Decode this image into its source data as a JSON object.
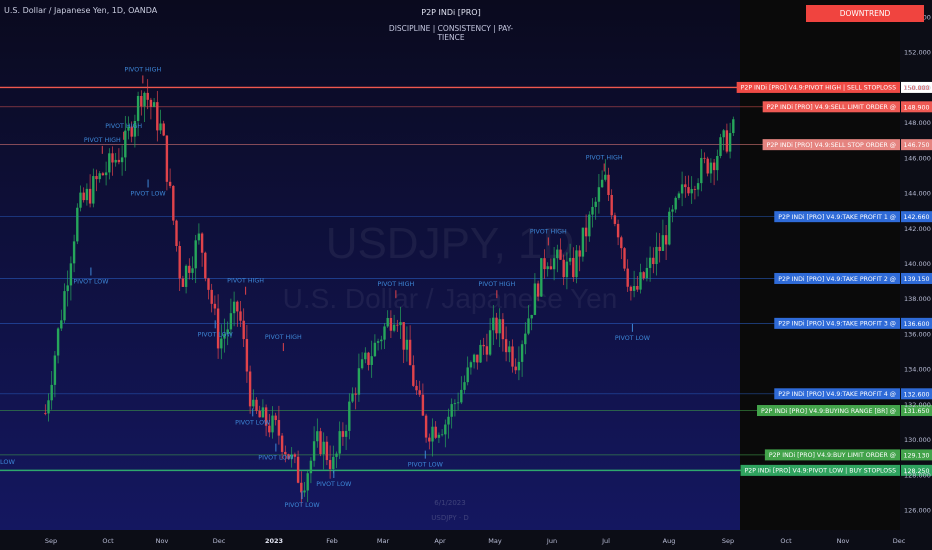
{
  "header": {
    "symbol_title": "U.S. Dollar / Japanese Yen, 1D, OANDA",
    "indicator_title": "P2P INDi [PRO]",
    "indicator_subtitle": "DISCIPLINE  |  CONSISTENCY  |  PAY-TIENCE",
    "trend_badge": "DOWNTREND"
  },
  "colors": {
    "background": "#0b0c2a",
    "up_candle": "#26a65b",
    "down_candle": "#e0434b",
    "sell_line": "#f05a50",
    "take_profit": "#2f6bd8",
    "buy_line": "#3f9e48",
    "buy_stop": "#2ea86e",
    "text": "#b9bdd6"
  },
  "watermark": {
    "symbol": "USDJPY, 1D",
    "name": "U.S. Dollar / Japanese Yen"
  },
  "cursor_readout": {
    "date": "6/1/2023",
    "symbol": "USDJPY · D"
  },
  "chart_data": {
    "type": "candlestick",
    "y_axis": {
      "ticks": [
        "126.000",
        "128.000",
        "130.000",
        "132.000",
        "134.000",
        "136.000",
        "138.000",
        "140.000",
        "142.000",
        "144.000",
        "146.000",
        "148.000",
        "150.000",
        "152.000",
        "154.000"
      ],
      "ylim": [
        125,
        155
      ]
    },
    "x_axis": {
      "ticks": [
        "Sep",
        "Oct",
        "Nov",
        "Dec",
        "2023",
        "Feb",
        "Mar",
        "Apr",
        "May",
        "Jun",
        "Jul",
        "Aug",
        "Sep",
        "Oct",
        "Nov",
        "Dec"
      ],
      "bold_ticks": [
        "2023"
      ]
    },
    "series": [
      {
        "date": "2022-08-29",
        "close": 131.5
      },
      {
        "date": "2022-09-15",
        "close": 143.0
      },
      {
        "date": "2022-09-26",
        "close": 144.8
      },
      {
        "date": "2022-10-10",
        "close": 146.5
      },
      {
        "date": "2022-10-21",
        "close": 150.0
      },
      {
        "date": "2022-11-01",
        "close": 147.5
      },
      {
        "date": "2022-11-11",
        "close": 139.0
      },
      {
        "date": "2022-11-21",
        "close": 141.5
      },
      {
        "date": "2022-12-01",
        "close": 135.5
      },
      {
        "date": "2022-12-12",
        "close": 137.5
      },
      {
        "date": "2022-12-20",
        "close": 131.5
      },
      {
        "date": "2023-01-03",
        "close": 130.5
      },
      {
        "date": "2023-01-16",
        "close": 127.5
      },
      {
        "date": "2023-01-25",
        "close": 130.0
      },
      {
        "date": "2023-02-02",
        "close": 128.5
      },
      {
        "date": "2023-02-15",
        "close": 133.5
      },
      {
        "date": "2023-03-08",
        "close": 137.5
      },
      {
        "date": "2023-03-24",
        "close": 130.5
      },
      {
        "date": "2023-04-04",
        "close": 131.0
      },
      {
        "date": "2023-04-20",
        "close": 134.5
      },
      {
        "date": "2023-05-02",
        "close": 136.5
      },
      {
        "date": "2023-05-12",
        "close": 134.5
      },
      {
        "date": "2023-05-29",
        "close": 140.5
      },
      {
        "date": "2023-06-12",
        "close": 139.5
      },
      {
        "date": "2023-06-30",
        "close": 144.8
      },
      {
        "date": "2023-07-07",
        "close": 142.0
      },
      {
        "date": "2023-07-14",
        "close": 138.0
      },
      {
        "date": "2023-07-28",
        "close": 141.0
      },
      {
        "date": "2023-08-10",
        "close": 144.5
      },
      {
        "date": "2023-08-24",
        "close": 146.0
      },
      {
        "date": "2023-09-05",
        "close": 147.7
      }
    ],
    "pivots": [
      {
        "label": "PIVOT HIGH",
        "date": "2022-10-21",
        "price": 150.0
      },
      {
        "label": "PIVOT HIGH",
        "date": "2022-10-10",
        "price": 146.8
      },
      {
        "label": "PIVOT HIGH",
        "date": "2022-09-28",
        "price": 146.0
      },
      {
        "label": "PIVOT LOW",
        "date": "2022-10-24",
        "price": 145.0
      },
      {
        "label": "PIVOT LOW",
        "date": "2022-09-22",
        "price": 140.0
      },
      {
        "label": "PIVOT HIGH",
        "date": "2022-12-16",
        "price": 138.0
      },
      {
        "label": "PIVOT LOW",
        "date": "2022-11-29",
        "price": 137.0
      },
      {
        "label": "PIVOT HIGH",
        "date": "2023-01-06",
        "price": 134.8
      },
      {
        "label": "PIVOT LOW",
        "date": "2022-12-20",
        "price": 132.0
      },
      {
        "label": "PIVOT LOW",
        "date": "2023-01-02",
        "price": 130.0
      },
      {
        "label": "PIVOT LOW",
        "date": "2023-01-16",
        "price": 127.3
      },
      {
        "label": "PIVOT LOW",
        "date": "2023-02-02",
        "price": 128.5
      },
      {
        "label": "PIVOT HIGH",
        "date": "2023-03-08",
        "price": 137.8
      },
      {
        "label": "PIVOT HIGH",
        "date": "2023-05-02",
        "price": 137.8
      },
      {
        "label": "PIVOT LOW",
        "date": "2023-03-24",
        "price": 129.6
      },
      {
        "label": "PIVOT HIGH",
        "date": "2023-05-30",
        "price": 140.8
      },
      {
        "label": "PIVOT HIGH",
        "date": "2023-06-30",
        "price": 145.0
      },
      {
        "label": "PIVOT LOW",
        "date": "2023-07-14",
        "price": 136.8
      }
    ],
    "levels": [
      {
        "label": "P2P INDi [PRO] V4.9:PIVOT HIGH | SELL STOPLOSS",
        "value": "150.000",
        "price": 150.0,
        "kind": "sell_stop"
      },
      {
        "label": "P2P INDi [PRO] V4.9:SELL LIMIT ORDER @",
        "value": "148.900",
        "price": 148.9,
        "kind": "sell"
      },
      {
        "label": "P2P INDi [PRO] V4.9:SELL STOP ORDER @",
        "value": "146.750",
        "price": 146.75,
        "kind": "sell_soft"
      },
      {
        "label": "P2P INDi [PRO] V4.9:TAKE PROFIT 1 @",
        "value": "142.660",
        "price": 142.66,
        "kind": "tp"
      },
      {
        "label": "P2P INDi [PRO] V4.9:TAKE PROFIT 2 @",
        "value": "139.150",
        "price": 139.15,
        "kind": "tp"
      },
      {
        "label": "P2P INDi [PRO] V4.9:TAKE PROFIT 3 @",
        "value": "136.600",
        "price": 136.6,
        "kind": "tp"
      },
      {
        "label": "P2P INDi [PRO] V4.9:TAKE PROFIT 4 @",
        "value": "132.600",
        "price": 132.6,
        "kind": "tp"
      },
      {
        "label": "P2P INDi [PRO] V4.9:BUYING RANGE [BR] @",
        "value": "131.650",
        "price": 131.65,
        "kind": "buy"
      },
      {
        "label": "P2P INDi [PRO] V4.9:BUY LIMIT ORDER @",
        "value": "129.130",
        "price": 129.13,
        "kind": "buy"
      },
      {
        "label": "P2P INDi [PRO] V4.9:PIVOT LOW | BUY STOPLOSS",
        "value": "128.250",
        "price": 128.25,
        "kind": "buy_stop"
      }
    ],
    "edge_labels": [
      "LOW",
      "PIVOT LOW"
    ]
  }
}
